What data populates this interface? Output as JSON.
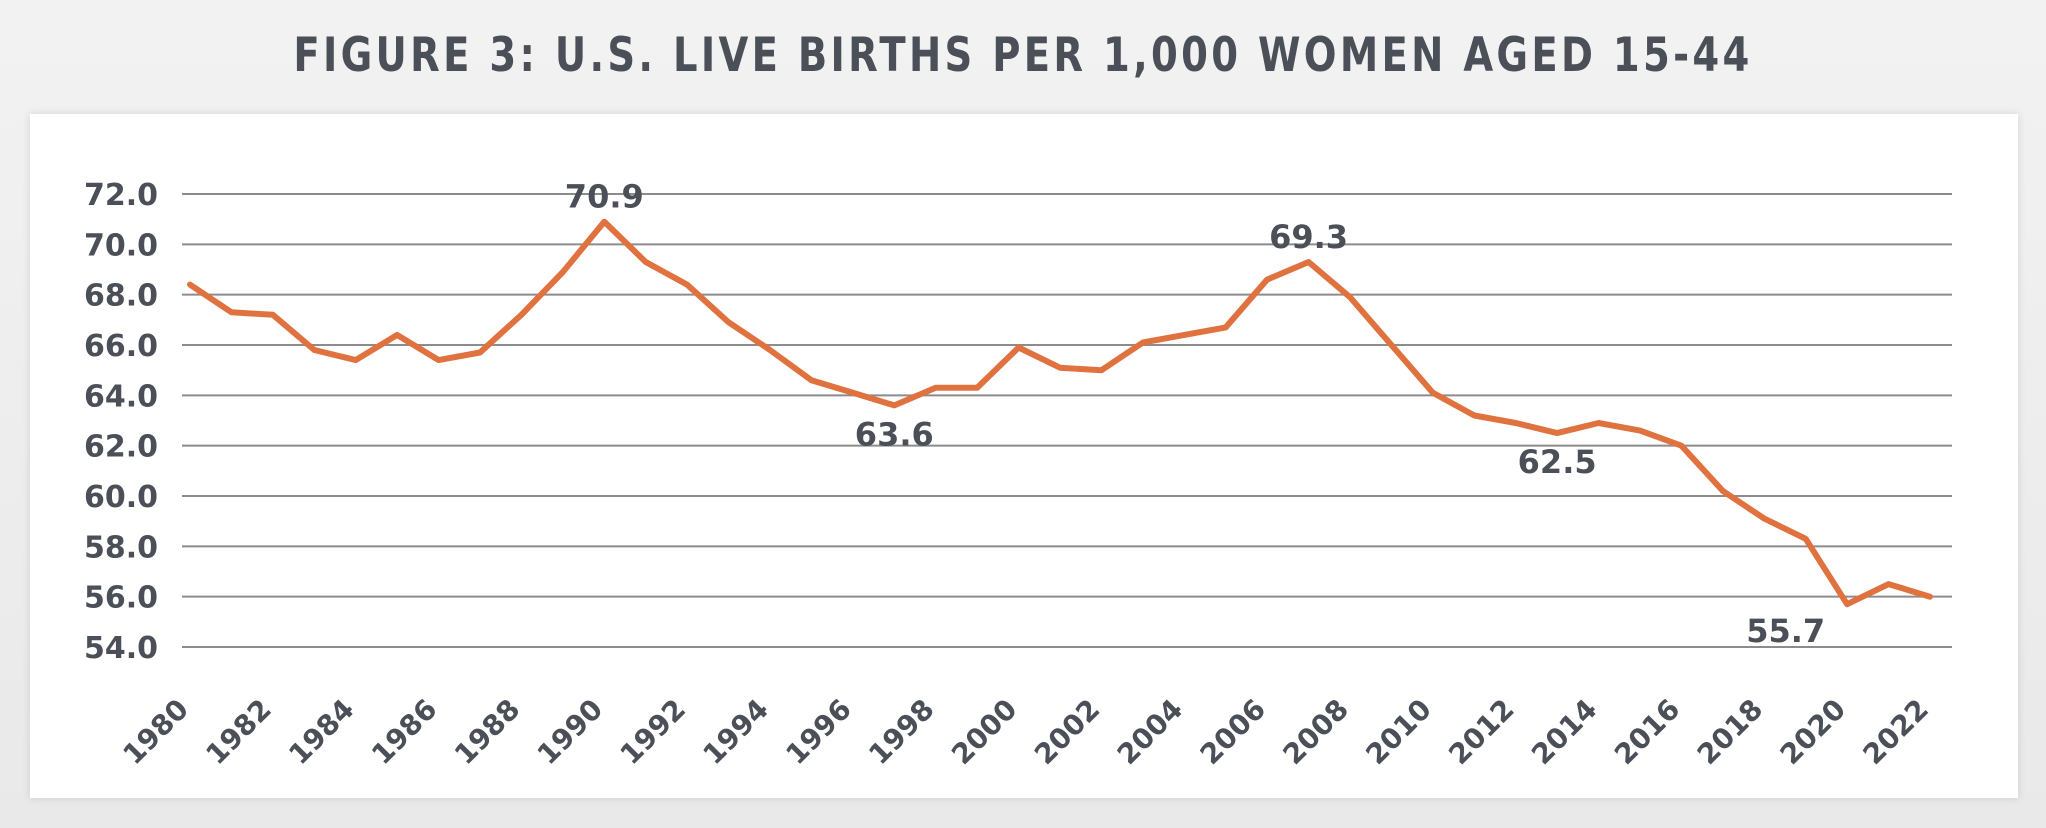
{
  "page": {
    "title": "FIGURE 3: U.S. LIVE BIRTHS PER 1,000 WOMEN AGED 15-44"
  },
  "colors": {
    "line": "#e07240",
    "grid": "#8c8c8c",
    "text": "#4b4f57",
    "background": "#ffffff"
  },
  "chart_data": {
    "type": "line",
    "title": "FIGURE 3: U.S. LIVE BIRTHS PER 1,000 WOMEN AGED 15-44",
    "xlabel": "",
    "ylabel": "",
    "ylim": [
      54.0,
      72.0
    ],
    "grid": true,
    "y_ticks": [
      "54.0",
      "56.0",
      "58.0",
      "60.0",
      "62.0",
      "64.0",
      "66.0",
      "68.0",
      "70.0",
      "72.0"
    ],
    "x_ticks": [
      "1980",
      "1982",
      "1984",
      "1986",
      "1988",
      "1990",
      "1992",
      "1994",
      "1996",
      "1998",
      "2000",
      "2002",
      "2004",
      "2006",
      "2008",
      "2010",
      "2012",
      "2014",
      "2016",
      "2018",
      "2020",
      "2022"
    ],
    "series": [
      {
        "name": "Live births per 1,000 women aged 15-44",
        "x": [
          1980,
          1981,
          1982,
          1983,
          1984,
          1985,
          1986,
          1987,
          1988,
          1989,
          1990,
          1991,
          1992,
          1993,
          1994,
          1995,
          1996,
          1997,
          1998,
          1999,
          2000,
          2001,
          2002,
          2003,
          2004,
          2005,
          2006,
          2007,
          2008,
          2009,
          2010,
          2011,
          2012,
          2013,
          2014,
          2015,
          2016,
          2017,
          2018,
          2019,
          2020,
          2021,
          2022
        ],
        "values": [
          68.4,
          67.3,
          67.2,
          65.8,
          65.4,
          66.4,
          65.4,
          65.7,
          67.2,
          68.9,
          70.9,
          69.3,
          68.4,
          66.9,
          65.8,
          64.6,
          64.1,
          63.6,
          64.3,
          64.3,
          65.9,
          65.1,
          65.0,
          66.1,
          66.4,
          66.7,
          68.6,
          69.3,
          67.9,
          66.0,
          64.1,
          63.2,
          62.9,
          62.5,
          62.9,
          62.6,
          62.0,
          60.2,
          59.1,
          58.3,
          55.7,
          56.5,
          56.0
        ]
      }
    ],
    "annotations": [
      {
        "x": 1990,
        "y": 70.9,
        "label": "70.9",
        "placement": "above"
      },
      {
        "x": 1997,
        "y": 63.6,
        "label": "63.6",
        "placement": "below"
      },
      {
        "x": 2007,
        "y": 69.3,
        "label": "69.3",
        "placement": "above"
      },
      {
        "x": 2013,
        "y": 62.5,
        "label": "62.5",
        "placement": "below"
      },
      {
        "x": 2020,
        "y": 55.7,
        "label": "55.7",
        "placement": "below-left"
      }
    ]
  }
}
